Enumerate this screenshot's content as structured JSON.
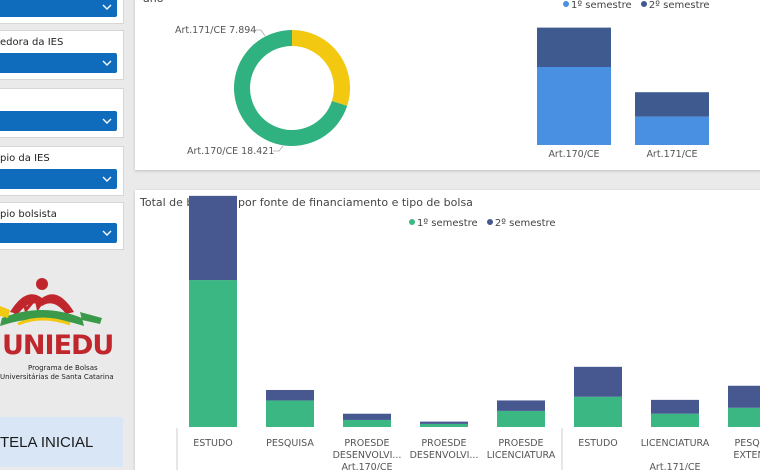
{
  "filters": [
    {
      "label": ""
    },
    {
      "label": "edora da IES"
    },
    {
      "label": ""
    },
    {
      "label": "pio da IES"
    },
    {
      "label": "pio bolsista"
    }
  ],
  "logo": {
    "brand": "UNIEDU",
    "line1": "Programa de Bolsas",
    "line2": "Universitárias de Santa Catarina"
  },
  "home_button": {
    "label": "TELA INICIAL"
  },
  "top_card": {
    "title": "ano",
    "legend": [
      {
        "name": "1º semestre",
        "color": "#4a90e2"
      },
      {
        "name": "2º semestre",
        "color": "#3f5a8e"
      }
    ]
  },
  "bottom_card": {
    "title": "Total de bolsistas por fonte de financiamento e tipo de bolsa",
    "legend": [
      {
        "name": "1º semestre",
        "color": "#3bb784"
      },
      {
        "name": "2º semestre",
        "color": "#46588f"
      }
    ]
  },
  "chart_data": [
    {
      "type": "pie",
      "subtype": "donut",
      "labels": [
        "Art.171/CE",
        "Art.170/CE"
      ],
      "values": [
        7894,
        18421
      ],
      "data_labels": [
        "Art.171/CE 7.894",
        "Art.170/CE 18.421"
      ],
      "colors": [
        "#f2c811",
        "#2fb27f"
      ]
    },
    {
      "type": "bar",
      "stacked": true,
      "categories": [
        "Art.170/CE",
        "Art.171/CE"
      ],
      "series": [
        {
          "name": "1º semestre",
          "values": [
            9900,
            3600
          ],
          "color": "#4a90e2"
        },
        {
          "name": "2º semestre",
          "values": [
            5000,
            3100
          ],
          "color": "#3f5a8e"
        }
      ],
      "ylim": [
        0,
        16500
      ]
    },
    {
      "type": "bar",
      "stacked": true,
      "categories": [
        "ESTUDO",
        "PESQUISA",
        "PROESDE DESENVOLVI...",
        "PROESDE DESENVOLVI...",
        "PROESDE LICENCIATURA",
        "ESTUDO",
        "LICENCIATURA",
        "PESQUI EXTENS"
      ],
      "tick_labels": [
        [
          "ESTUDO"
        ],
        [
          "PESQUISA"
        ],
        [
          "PROESDE",
          "DESENVOLVI..."
        ],
        [
          "PROESDE",
          "DESENVOLVI..."
        ],
        [
          "PROESDE",
          "LICENCIATURA"
        ],
        [
          "ESTUDO"
        ],
        [
          "LICENCIATURA"
        ],
        [
          "PESQUI",
          "EXTENS"
        ]
      ],
      "groups": [
        {
          "label": "Art.170/CE",
          "from": 0,
          "to": 4
        },
        {
          "label": "Art.171/CE",
          "from": 5,
          "to": 7
        }
      ],
      "series": [
        {
          "name": "1º semestre",
          "values": [
            5200,
            940,
            250,
            110,
            570,
            1070,
            470,
            680
          ],
          "color": "#3bb784"
        },
        {
          "name": "2º semestre",
          "values": [
            2980,
            370,
            220,
            80,
            370,
            1060,
            490,
            780
          ],
          "color": "#46588f"
        }
      ],
      "ylim": [
        0,
        8600
      ]
    }
  ]
}
